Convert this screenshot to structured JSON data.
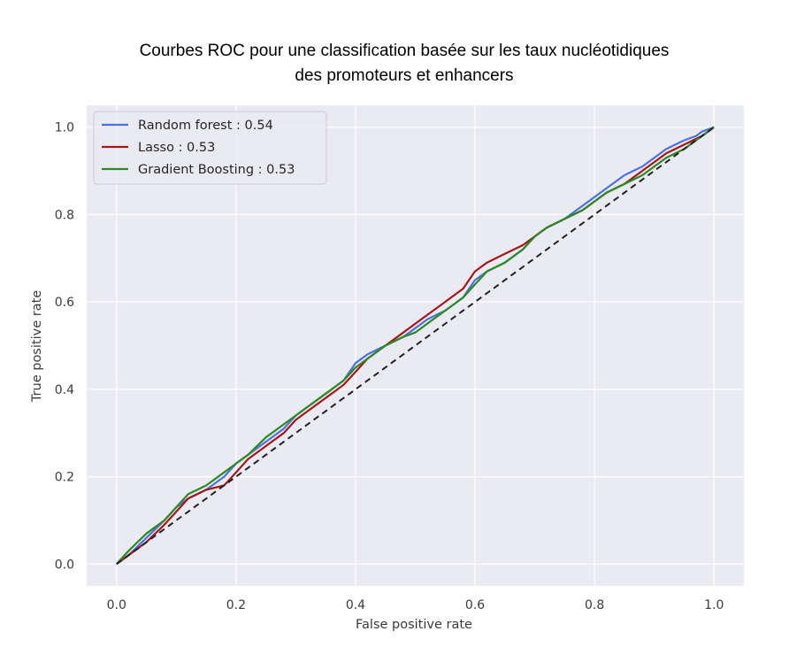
{
  "chart_data": {
    "type": "line",
    "title": "Courbes ROC pour une classification basée sur les taux nucléotidiques des promoteurs et enhancers",
    "title_lines": [
      "Courbes ROC pour une classification basée sur les taux nucléotidiques",
      "des promoteurs et enhancers"
    ],
    "xlabel": "False positive rate",
    "ylabel": "True positive rate",
    "xlim": [
      -0.05,
      1.05
    ],
    "ylim": [
      -0.05,
      1.05
    ],
    "xticks": [
      0.0,
      0.2,
      0.4,
      0.6,
      0.8,
      1.0
    ],
    "yticks": [
      0.0,
      0.2,
      0.4,
      0.6,
      0.8,
      1.0
    ],
    "xtick_labels": [
      "0.0",
      "0.2",
      "0.4",
      "0.6",
      "0.8",
      "1.0"
    ],
    "ytick_labels": [
      "0.0",
      "0.2",
      "0.4",
      "0.6",
      "0.8",
      "1.0"
    ],
    "grid": true,
    "background": "#eaeaf2",
    "legend_position": "top-left",
    "series": [
      {
        "name": "Random forest : 0.54",
        "color": "#4c72e0",
        "x": [
          0.0,
          0.02,
          0.05,
          0.08,
          0.1,
          0.12,
          0.15,
          0.18,
          0.2,
          0.22,
          0.25,
          0.28,
          0.3,
          0.32,
          0.35,
          0.38,
          0.4,
          0.42,
          0.45,
          0.48,
          0.5,
          0.52,
          0.55,
          0.58,
          0.6,
          0.62,
          0.65,
          0.68,
          0.7,
          0.72,
          0.75,
          0.78,
          0.8,
          0.82,
          0.85,
          0.88,
          0.9,
          0.92,
          0.95,
          0.97,
          0.98,
          1.0
        ],
        "y": [
          0.0,
          0.02,
          0.06,
          0.1,
          0.13,
          0.15,
          0.17,
          0.2,
          0.23,
          0.25,
          0.28,
          0.31,
          0.34,
          0.36,
          0.39,
          0.42,
          0.46,
          0.48,
          0.5,
          0.52,
          0.54,
          0.56,
          0.58,
          0.61,
          0.65,
          0.67,
          0.69,
          0.72,
          0.75,
          0.77,
          0.79,
          0.82,
          0.84,
          0.86,
          0.89,
          0.91,
          0.93,
          0.95,
          0.97,
          0.98,
          0.99,
          1.0
        ]
      },
      {
        "name": "Lasso : 0.53",
        "color": "#a4181b",
        "x": [
          0.0,
          0.02,
          0.05,
          0.08,
          0.1,
          0.12,
          0.15,
          0.18,
          0.2,
          0.22,
          0.25,
          0.28,
          0.3,
          0.32,
          0.35,
          0.38,
          0.4,
          0.42,
          0.45,
          0.48,
          0.5,
          0.52,
          0.55,
          0.58,
          0.6,
          0.62,
          0.65,
          0.68,
          0.7,
          0.72,
          0.75,
          0.78,
          0.8,
          0.82,
          0.85,
          0.88,
          0.9,
          0.92,
          0.95,
          0.98,
          1.0
        ],
        "y": [
          0.0,
          0.02,
          0.05,
          0.09,
          0.12,
          0.15,
          0.17,
          0.18,
          0.21,
          0.24,
          0.27,
          0.3,
          0.33,
          0.35,
          0.38,
          0.41,
          0.44,
          0.47,
          0.5,
          0.53,
          0.55,
          0.57,
          0.6,
          0.63,
          0.67,
          0.69,
          0.71,
          0.73,
          0.75,
          0.77,
          0.79,
          0.81,
          0.83,
          0.85,
          0.87,
          0.9,
          0.92,
          0.94,
          0.96,
          0.98,
          1.0
        ]
      },
      {
        "name": "Gradient Boosting : 0.53",
        "color": "#2b8a23",
        "x": [
          0.0,
          0.02,
          0.05,
          0.08,
          0.1,
          0.12,
          0.15,
          0.18,
          0.2,
          0.22,
          0.25,
          0.28,
          0.3,
          0.32,
          0.35,
          0.38,
          0.4,
          0.42,
          0.45,
          0.48,
          0.5,
          0.52,
          0.55,
          0.58,
          0.6,
          0.62,
          0.65,
          0.68,
          0.7,
          0.72,
          0.75,
          0.78,
          0.8,
          0.82,
          0.85,
          0.88,
          0.9,
          0.92,
          0.95,
          0.98,
          1.0
        ],
        "y": [
          0.0,
          0.03,
          0.07,
          0.1,
          0.13,
          0.16,
          0.18,
          0.21,
          0.23,
          0.25,
          0.29,
          0.32,
          0.34,
          0.36,
          0.39,
          0.42,
          0.45,
          0.47,
          0.5,
          0.52,
          0.53,
          0.55,
          0.58,
          0.61,
          0.64,
          0.67,
          0.69,
          0.72,
          0.75,
          0.77,
          0.79,
          0.81,
          0.83,
          0.85,
          0.87,
          0.89,
          0.91,
          0.93,
          0.95,
          0.98,
          1.0
        ]
      }
    ],
    "reference_line": {
      "style": "dashed",
      "color": "#222222",
      "x": [
        0.0,
        1.0
      ],
      "y": [
        0.0,
        1.0
      ]
    }
  }
}
